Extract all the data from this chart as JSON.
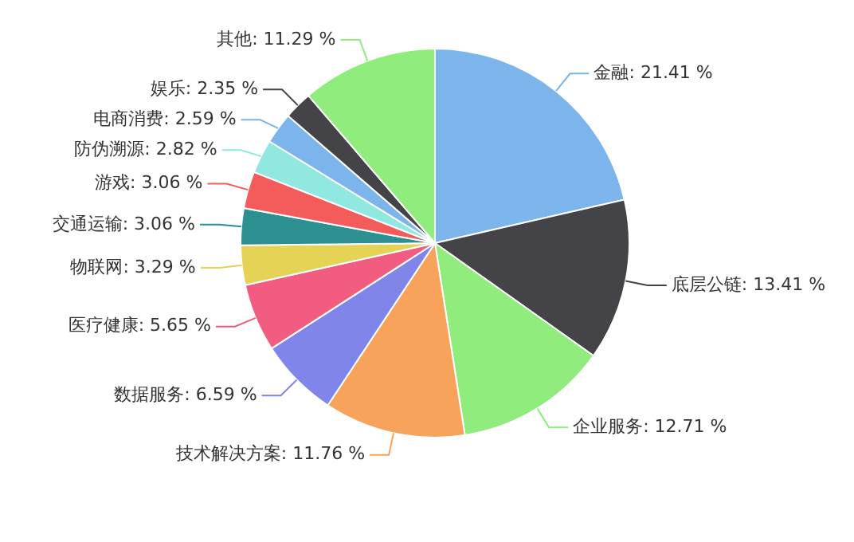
{
  "chart_data": {
    "type": "pie",
    "categories": [
      "金融",
      "底层公链",
      "企业服务",
      "技术解决方案",
      "数据服务",
      "医疗健康",
      "物联网",
      "交通运输",
      "游戏",
      "防伪溯源",
      "电商消费",
      "娱乐",
      "其他"
    ],
    "values": [
      21.41,
      13.41,
      12.71,
      11.76,
      6.59,
      5.65,
      3.29,
      3.06,
      3.06,
      2.82,
      2.59,
      2.35,
      11.29
    ],
    "value_labels": [
      "21.41 %",
      "13.41 %",
      "12.71 %",
      "11.76 %",
      "6.59 %",
      "5.65 %",
      "3.29 %",
      "3.06 %",
      "3.06 %",
      "2.82 %",
      "2.59 %",
      "2.35 %",
      "11.29 %"
    ],
    "colors": [
      "#7cb5ec",
      "#434348",
      "#90ed7d",
      "#f7a35c",
      "#8085e9",
      "#f15c80",
      "#e4d354",
      "#2b908f",
      "#f45b5b",
      "#91e8e1",
      "#7cb5ec",
      "#434348",
      "#90ed7d"
    ],
    "legend": false
  }
}
